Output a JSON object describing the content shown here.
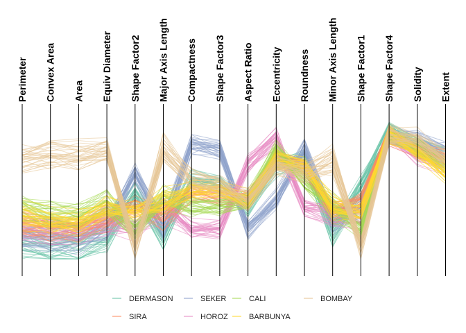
{
  "chart_data": {
    "type": "parallel-coordinates",
    "value_scale": "min-max normalized (0-1), no tick labels shown",
    "axes": [
      "Perimeter",
      "Convex Area",
      "Area",
      "Equiv Diameter",
      "Shape Factor2",
      "Major Axis Length",
      "Compactness",
      "Shape Factor3",
      "Aspect Ratio",
      "Eccentricity",
      "Roundness",
      "Minor Axis Length",
      "Shape Factor1",
      "Shape Factor4",
      "Solidity",
      "Extent"
    ],
    "legend_position": "bottom",
    "grid": false,
    "series": [
      {
        "name": "DERMASON",
        "color": "#66c2a5",
        "profile": [
          0.19,
          0.17,
          0.17,
          0.23,
          0.48,
          0.23,
          0.56,
          0.54,
          0.4,
          0.64,
          0.68,
          0.25,
          0.52,
          0.84,
          0.76,
          0.7
        ]
      },
      {
        "name": "SEKER",
        "color": "#8da0cb",
        "profile": [
          0.23,
          0.21,
          0.21,
          0.27,
          0.6,
          0.27,
          0.76,
          0.74,
          0.27,
          0.44,
          0.74,
          0.31,
          0.4,
          0.82,
          0.78,
          0.72
        ]
      },
      {
        "name": "HOROZ",
        "color": "#e78ac3",
        "profile": [
          0.27,
          0.25,
          0.25,
          0.31,
          0.27,
          0.4,
          0.27,
          0.27,
          0.64,
          0.8,
          0.4,
          0.35,
          0.31,
          0.8,
          0.7,
          0.64
        ]
      },
      {
        "name": "SIRA",
        "color": "#fc8d62",
        "profile": [
          0.29,
          0.27,
          0.27,
          0.33,
          0.4,
          0.35,
          0.48,
          0.46,
          0.44,
          0.68,
          0.62,
          0.38,
          0.42,
          0.82,
          0.74,
          0.68
        ]
      },
      {
        "name": "CALI",
        "color": "#a6d854",
        "profile": [
          0.4,
          0.35,
          0.35,
          0.42,
          0.27,
          0.46,
          0.4,
          0.4,
          0.44,
          0.74,
          0.56,
          0.4,
          0.27,
          0.82,
          0.74,
          0.64
        ]
      },
      {
        "name": "BARBUNYA",
        "color": "#ffd92f",
        "profile": [
          0.35,
          0.31,
          0.31,
          0.4,
          0.38,
          0.44,
          0.5,
          0.5,
          0.44,
          0.68,
          0.64,
          0.4,
          0.38,
          0.82,
          0.72,
          0.6
        ]
      },
      {
        "name": "BOMBAY",
        "color": "#e5c494",
        "profile": [
          0.68,
          0.7,
          0.7,
          0.74,
          0.17,
          0.74,
          0.56,
          0.54,
          0.44,
          0.64,
          0.6,
          0.68,
          0.17,
          0.82,
          0.8,
          0.68
        ]
      }
    ],
    "legend_order": [
      "DERMASON",
      "SEKER",
      "CALI",
      "BOMBAY",
      "SIRA",
      "HOROZ",
      "BARBUNYA"
    ]
  }
}
